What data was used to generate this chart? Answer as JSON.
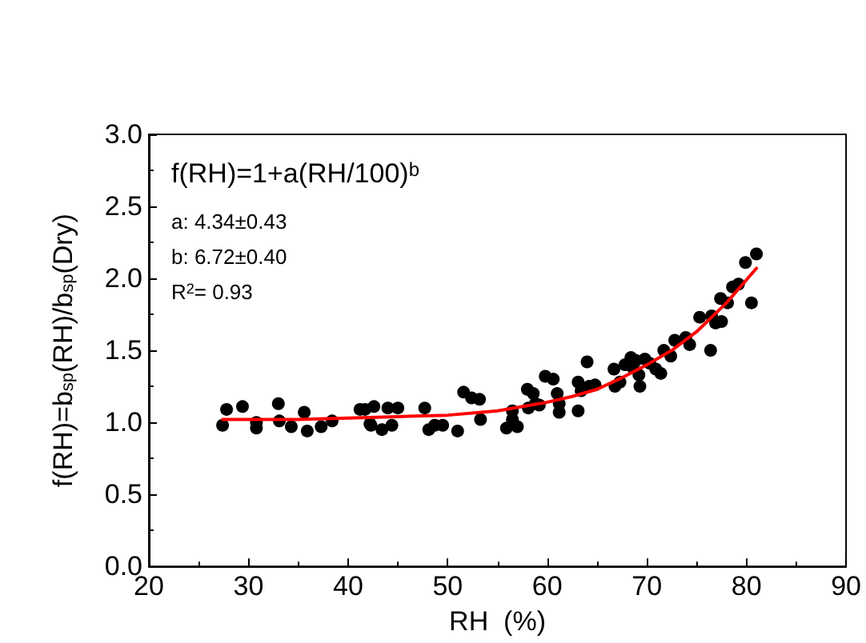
{
  "chart_data": {
    "type": "scatter",
    "xlabel": "RH  (%)",
    "ylabel": "f(RH)=b$_{sp}$(RH)/b$_{sp}$(Dry)",
    "annotations": [
      "f(RH)=1+a(RH/100)$^{b}$",
      "a: 4.34±0.43",
      "b: 6.72±0.40",
      "R$^{2}$= 0.93"
    ],
    "xlim": [
      20,
      90
    ],
    "xticks": [
      20,
      30,
      40,
      50,
      60,
      70,
      80,
      90
    ],
    "ylim": [
      0,
      3
    ],
    "yticks": [
      {
        "value": 0,
        "label": "0.0"
      },
      {
        "value": 0.5,
        "label": "0.5"
      },
      {
        "value": 1,
        "label": "1.0"
      },
      {
        "value": 1.5,
        "label": "1.5"
      },
      {
        "value": 2,
        "label": "2.0"
      },
      {
        "value": 2.5,
        "label": "2.5"
      },
      {
        "value": 3,
        "label": "3.0"
      }
    ],
    "grid": false,
    "marker": "circle",
    "series": [
      {
        "color": "#000000",
        "x": [
          27.4,
          27.8,
          29.4,
          30.8,
          30.8,
          33.0,
          33.1,
          34.3,
          35.6,
          35.9,
          37.3,
          38.4,
          41.2,
          41.7,
          42.2,
          42.6,
          42.3,
          43.4,
          44.0,
          44.4,
          45.0,
          47.7,
          48.1,
          48.7,
          49.5,
          51.0,
          51.6,
          52.4,
          53.2,
          53.3,
          55.9,
          56.5,
          56.5,
          57.0,
          58.0,
          58.1,
          58.6,
          58.8,
          59.2,
          59.8,
          60.6,
          61.0,
          61.2,
          61.2,
          63.1,
          63.1,
          63.4,
          64.0,
          64.2,
          64.8,
          66.7,
          66.8,
          67.3,
          67.8,
          68.4,
          68.6,
          68.9,
          69.2,
          69.3,
          69.8,
          70.3,
          70.9,
          71.4,
          71.7,
          72.4,
          72.8,
          73.9,
          74.3,
          75.3,
          76.4,
          76.5,
          76.9,
          77.5,
          77.4,
          78.1,
          78.6,
          79.2,
          79.9,
          80.5,
          81.0
        ],
        "values": [
          0.98,
          1.09,
          1.11,
          1.0,
          0.96,
          1.13,
          1.01,
          0.97,
          1.07,
          0.94,
          0.97,
          1.01,
          1.09,
          1.09,
          0.99,
          1.11,
          0.98,
          0.95,
          1.1,
          0.98,
          1.1,
          1.1,
          0.95,
          0.98,
          0.98,
          0.94,
          1.21,
          1.17,
          1.16,
          1.02,
          0.96,
          1.08,
          1.02,
          0.97,
          1.23,
          1.1,
          1.2,
          1.13,
          1.12,
          1.32,
          1.3,
          1.2,
          1.13,
          1.07,
          1.08,
          1.28,
          1.22,
          1.42,
          1.25,
          1.26,
          1.37,
          1.25,
          1.28,
          1.4,
          1.45,
          1.38,
          1.43,
          1.33,
          1.25,
          1.44,
          1.41,
          1.37,
          1.34,
          1.5,
          1.46,
          1.57,
          1.59,
          1.54,
          1.73,
          1.5,
          1.74,
          1.69,
          1.7,
          1.86,
          1.83,
          1.94,
          1.96,
          2.11,
          1.83,
          2.17
        ]
      },
      {
        "type": "line",
        "color": "#ff0000",
        "marker": "none",
        "line_style": "solid",
        "x": [
          27.4,
          35,
          40,
          45,
          50,
          55,
          60,
          62.5,
          65,
          67.5,
          70,
          72.5,
          75,
          78,
          81
        ],
        "values": [
          1.02,
          1.02,
          1.03,
          1.04,
          1.05,
          1.08,
          1.14,
          1.18,
          1.23,
          1.31,
          1.4,
          1.5,
          1.63,
          1.83,
          2.07
        ]
      }
    ]
  }
}
